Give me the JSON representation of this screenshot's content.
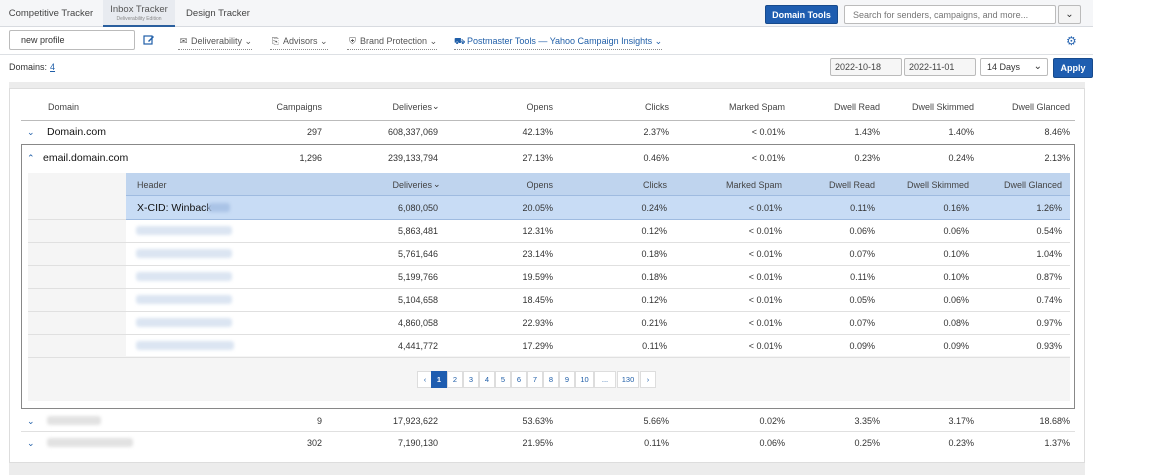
{
  "tabs": [
    {
      "label": "Competitive Tracker"
    },
    {
      "label": "Inbox Tracker",
      "sub": "Deliverability Edition"
    },
    {
      "label": "Design Tracker"
    }
  ],
  "header": {
    "domain_tools": "Domain Tools",
    "search_placeholder": "Search for senders, campaigns, and more..."
  },
  "toolbar": {
    "profile": "new profile",
    "menus": [
      "Deliverability",
      "Advisors",
      "Brand Protection",
      "Postmaster Tools — Yahoo Campaign Insights"
    ]
  },
  "filters": {
    "domains_label": "Domains:",
    "domains_count": "4",
    "date_start": "2022-10-18",
    "date_end": "2022-11-01",
    "range": "14 Days",
    "apply": "Apply"
  },
  "table": {
    "columns": [
      "Domain",
      "Campaigns",
      "Deliveries",
      "Opens",
      "Clicks",
      "Marked Spam",
      "Dwell Read",
      "Dwell Skimmed",
      "Dwell Glanced"
    ],
    "rows": [
      {
        "domain": "Domain.com",
        "campaigns": "297",
        "deliveries": "608,337,069",
        "opens": "42.13%",
        "clicks": "2.37%",
        "spam": "< 0.01%",
        "read": "1.43%",
        "skimmed": "1.40%",
        "glanced": "8.46%"
      },
      {
        "domain": "email.domain.com",
        "campaigns": "1,296",
        "deliveries": "239,133,794",
        "opens": "27.13%",
        "clicks": "0.46%",
        "spam": "< 0.01%",
        "read": "0.23%",
        "skimmed": "0.24%",
        "glanced": "2.13%"
      },
      {
        "domain": "",
        "campaigns": "9",
        "deliveries": "17,923,622",
        "opens": "53.63%",
        "clicks": "5.66%",
        "spam": "0.02%",
        "read": "3.35%",
        "skimmed": "3.17%",
        "glanced": "18.68%"
      },
      {
        "domain": "",
        "campaigns": "302",
        "deliveries": "7,190,130",
        "opens": "21.95%",
        "clicks": "0.11%",
        "spam": "0.06%",
        "read": "0.25%",
        "skimmed": "0.23%",
        "glanced": "1.37%"
      }
    ]
  },
  "subtable": {
    "columns": [
      "Header",
      "Deliveries",
      "Opens",
      "Clicks",
      "Marked Spam",
      "Dwell Read",
      "Dwell Skimmed",
      "Dwell Glanced"
    ],
    "rows": [
      {
        "header": "X-CID: Winback",
        "deliveries": "6,080,050",
        "opens": "20.05%",
        "clicks": "0.24%",
        "spam": "< 0.01%",
        "read": "0.11%",
        "skimmed": "0.16%",
        "glanced": "1.26%"
      },
      {
        "header": "",
        "deliveries": "5,863,481",
        "opens": "12.31%",
        "clicks": "0.12%",
        "spam": "< 0.01%",
        "read": "0.06%",
        "skimmed": "0.06%",
        "glanced": "0.54%"
      },
      {
        "header": "",
        "deliveries": "5,761,646",
        "opens": "23.14%",
        "clicks": "0.18%",
        "spam": "< 0.01%",
        "read": "0.07%",
        "skimmed": "0.10%",
        "glanced": "1.04%"
      },
      {
        "header": "",
        "deliveries": "5,199,766",
        "opens": "19.59%",
        "clicks": "0.18%",
        "spam": "< 0.01%",
        "read": "0.11%",
        "skimmed": "0.10%",
        "glanced": "0.87%"
      },
      {
        "header": "",
        "deliveries": "5,104,658",
        "opens": "18.45%",
        "clicks": "0.12%",
        "spam": "< 0.01%",
        "read": "0.05%",
        "skimmed": "0.06%",
        "glanced": "0.74%"
      },
      {
        "header": "",
        "deliveries": "4,860,058",
        "opens": "22.93%",
        "clicks": "0.21%",
        "spam": "< 0.01%",
        "read": "0.07%",
        "skimmed": "0.08%",
        "glanced": "0.97%"
      },
      {
        "header": "",
        "deliveries": "4,441,772",
        "opens": "17.29%",
        "clicks": "0.11%",
        "spam": "< 0.01%",
        "read": "0.09%",
        "skimmed": "0.09%",
        "glanced": "0.93%"
      }
    ]
  },
  "pagination": {
    "prev": "‹",
    "pages": [
      "1",
      "2",
      "3",
      "4",
      "5",
      "6",
      "7",
      "8",
      "9",
      "10",
      "...",
      "130"
    ],
    "next": "›",
    "active": "1"
  },
  "icons": {
    "edit": "edit-icon",
    "gear": "gear-icon"
  },
  "colors": {
    "accent": "#1e5db0",
    "selected_row": "#c8dcf5",
    "subheader": "#bfd4ee"
  }
}
